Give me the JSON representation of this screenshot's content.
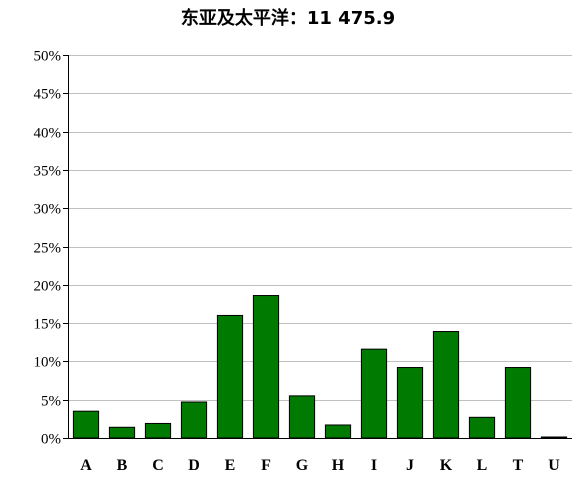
{
  "chart_data": {
    "type": "bar",
    "title": "东亚及太平洋：11 475.9",
    "xlabel": "",
    "ylabel": "",
    "categories": [
      "A",
      "B",
      "C",
      "D",
      "E",
      "F",
      "G",
      "H",
      "I",
      "J",
      "K",
      "L",
      "T",
      "U"
    ],
    "values": [
      3.5,
      1.4,
      1.9,
      4.7,
      16.0,
      18.6,
      5.5,
      1.7,
      11.6,
      9.2,
      13.9,
      2.7,
      9.2,
      0.1
    ],
    "value_unit": "%",
    "ylim": [
      0,
      50
    ],
    "yticks": [
      "0%",
      "5%",
      "10%",
      "15%",
      "20%",
      "25%",
      "30%",
      "35%",
      "40%",
      "45%",
      "50%"
    ],
    "grid": true,
    "legend": "none",
    "colors": {
      "bar_fill": "#007A00",
      "bar_stroke": "#000000",
      "gridline": "#C0C0C0",
      "axis": "#000000"
    }
  }
}
